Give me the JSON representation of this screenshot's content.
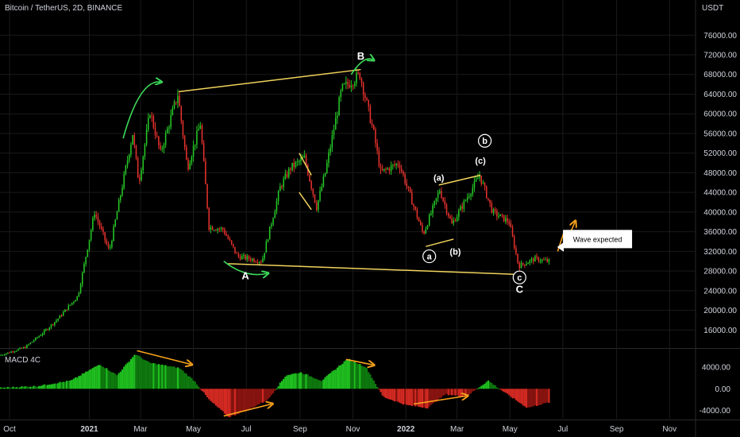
{
  "header": {
    "symbol_title": "Bitcoin / TetherUS, 2D, BINANCE",
    "currency": "USDT"
  },
  "colors": {
    "background": "#000000",
    "up": "#26c926",
    "down": "#e5322d",
    "grid": "#1a1a1a",
    "text": "#d1d4dc",
    "trendline": "#f2d45c",
    "green_arrow": "#3ddb5a",
    "orange_arrow": "#f7a21c",
    "wave_label": "#ffffff"
  },
  "macd_title": "MACD 4C",
  "callout": {
    "text": "Wave expected"
  },
  "chart_data": {
    "type": "candlestick",
    "title": "Bitcoin / TetherUS, 2D, BINANCE",
    "y_axis": {
      "unit": "USDT",
      "ticks": [
        "76000.00",
        "72000.00",
        "68000.00",
        "64000.00",
        "60000.00",
        "56000.00",
        "52000.00",
        "48000.00",
        "44000.00",
        "40000.00",
        "36000.00",
        "32000.00",
        "28000.00",
        "24000.00",
        "20000.00",
        "16000.00"
      ],
      "tick_values": [
        76000,
        72000,
        68000,
        64000,
        60000,
        56000,
        52000,
        48000,
        44000,
        40000,
        36000,
        32000,
        28000,
        24000,
        20000,
        16000
      ],
      "range": [
        12500,
        79600
      ]
    },
    "x_axis": {
      "ticks": [
        "Oct",
        "2021",
        "Mar",
        "May",
        "Jul",
        "Sep",
        "Nov",
        "2022",
        "Mar",
        "May",
        "Jul",
        "Sep",
        "Nov"
      ],
      "range": [
        "2020-09-20",
        "2022-12-01"
      ]
    },
    "price_anchors": [
      {
        "date": "2020-09-20",
        "price": 10800
      },
      {
        "date": "2020-10-20",
        "price": 12500
      },
      {
        "date": "2020-11-10",
        "price": 15500
      },
      {
        "date": "2020-11-28",
        "price": 18500
      },
      {
        "date": "2020-12-20",
        "price": 23000
      },
      {
        "date": "2021-01-08",
        "price": 40000
      },
      {
        "date": "2021-01-25",
        "price": 32000
      },
      {
        "date": "2021-02-21",
        "price": 56000
      },
      {
        "date": "2021-02-28",
        "price": 46000
      },
      {
        "date": "2021-03-13",
        "price": 60500
      },
      {
        "date": "2021-03-25",
        "price": 52000
      },
      {
        "date": "2021-04-14",
        "price": 64000
      },
      {
        "date": "2021-04-25",
        "price": 49000
      },
      {
        "date": "2021-05-10",
        "price": 58000
      },
      {
        "date": "2021-05-20",
        "price": 37000
      },
      {
        "date": "2021-06-05",
        "price": 36500
      },
      {
        "date": "2021-06-22",
        "price": 31000
      },
      {
        "date": "2021-07-20",
        "price": 30000
      },
      {
        "date": "2021-08-10",
        "price": 45000
      },
      {
        "date": "2021-08-22",
        "price": 49000
      },
      {
        "date": "2021-09-07",
        "price": 51000
      },
      {
        "date": "2021-09-21",
        "price": 41000
      },
      {
        "date": "2021-10-01",
        "price": 48000
      },
      {
        "date": "2021-10-20",
        "price": 65000
      },
      {
        "date": "2021-11-10",
        "price": 68000
      },
      {
        "date": "2021-11-26",
        "price": 56000
      },
      {
        "date": "2021-12-04",
        "price": 48000
      },
      {
        "date": "2021-12-25",
        "price": 50000
      },
      {
        "date": "2022-01-22",
        "price": 35500
      },
      {
        "date": "2022-02-10",
        "price": 44500
      },
      {
        "date": "2022-02-24",
        "price": 37500
      },
      {
        "date": "2022-03-28",
        "price": 47500
      },
      {
        "date": "2022-04-12",
        "price": 40000
      },
      {
        "date": "2022-05-01",
        "price": 38000
      },
      {
        "date": "2022-05-12",
        "price": 29000
      },
      {
        "date": "2022-05-31",
        "price": 30500
      },
      {
        "date": "2022-06-14",
        "price": 30000
      }
    ],
    "macd": {
      "name": "MACD 4C",
      "ticks": [
        "4000.00",
        "0.00",
        "-4000.00"
      ],
      "tick_values": [
        4000,
        0,
        -4000
      ],
      "range": [
        -5500,
        7200
      ],
      "anchors": [
        {
          "date": "2020-09-20",
          "value": 200
        },
        {
          "date": "2020-11-01",
          "value": 500
        },
        {
          "date": "2020-12-10",
          "value": 1500
        },
        {
          "date": "2021-01-12",
          "value": 4500
        },
        {
          "date": "2021-02-01",
          "value": 2500
        },
        {
          "date": "2021-02-22",
          "value": 6400
        },
        {
          "date": "2021-03-10",
          "value": 4800
        },
        {
          "date": "2021-04-14",
          "value": 3800
        },
        {
          "date": "2021-05-01",
          "value": 1500
        },
        {
          "date": "2021-05-18",
          "value": -2000
        },
        {
          "date": "2021-06-10",
          "value": -5200
        },
        {
          "date": "2021-06-30",
          "value": -4000
        },
        {
          "date": "2021-07-25",
          "value": -2000
        },
        {
          "date": "2021-08-15",
          "value": 2500
        },
        {
          "date": "2021-09-01",
          "value": 3000
        },
        {
          "date": "2021-09-25",
          "value": 1500
        },
        {
          "date": "2021-10-25",
          "value": 5500
        },
        {
          "date": "2021-11-15",
          "value": 4000
        },
        {
          "date": "2021-12-05",
          "value": -1500
        },
        {
          "date": "2022-01-01",
          "value": -3000
        },
        {
          "date": "2022-01-25",
          "value": -3500
        },
        {
          "date": "2022-02-15",
          "value": -1000
        },
        {
          "date": "2022-03-10",
          "value": -1500
        },
        {
          "date": "2022-04-05",
          "value": 1500
        },
        {
          "date": "2022-04-25",
          "value": -800
        },
        {
          "date": "2022-05-20",
          "value": -3500
        },
        {
          "date": "2022-06-14",
          "value": -2500
        }
      ]
    },
    "annotations": {
      "wave_labels": [
        {
          "text": "A",
          "date": "2021-06-30",
          "price": 27000,
          "circled": false,
          "bold": true
        },
        {
          "text": "B",
          "date": "2021-11-10",
          "price": 71700,
          "circled": false,
          "bold": true
        },
        {
          "text": "C",
          "date": "2022-05-12",
          "price": 24200,
          "circled": false,
          "bold": true
        },
        {
          "text": "a",
          "date": "2022-01-28",
          "price": 31000,
          "circled": true,
          "bold": false
        },
        {
          "text": "(a)",
          "date": "2022-02-08",
          "price": 47000,
          "circled": false,
          "bold": false
        },
        {
          "text": "(b)",
          "date": "2022-02-27",
          "price": 32000,
          "circled": false,
          "bold": false
        },
        {
          "text": "(c)",
          "date": "2022-03-28",
          "price": 50500,
          "circled": false,
          "bold": false
        },
        {
          "text": "b",
          "date": "2022-04-02",
          "price": 54500,
          "circled": true,
          "bold": false
        },
        {
          "text": "c",
          "date": "2022-05-12",
          "price": 26700,
          "circled": true,
          "bold": false
        }
      ],
      "trendlines": [
        {
          "from": {
            "date": "2021-04-14",
            "price": 64500
          },
          "to": {
            "date": "2021-11-10",
            "price": 69000
          }
        },
        {
          "from": {
            "date": "2021-06-10",
            "price": 29500
          },
          "to": {
            "date": "2022-05-12",
            "price": 27300
          }
        },
        {
          "from": {
            "date": "2022-02-08",
            "price": 45500
          },
          "to": {
            "date": "2022-03-28",
            "price": 47500
          }
        },
        {
          "from": {
            "date": "2022-01-24",
            "price": 33000
          },
          "to": {
            "date": "2022-02-25",
            "price": 34500
          }
        },
        {
          "from": {
            "date": "2021-08-31",
            "price": 52000
          },
          "to": {
            "date": "2021-09-14",
            "price": 47500
          }
        },
        {
          "from": {
            "date": "2021-08-31",
            "price": 44000
          },
          "to": {
            "date": "2021-09-14",
            "price": 40500
          }
        }
      ],
      "green_arrows": [
        {
          "points": [
            [
              "2021-02-09",
              55000
            ],
            [
              "2021-02-28",
              67000
            ],
            [
              "2021-03-24",
              66500
            ]
          ]
        },
        {
          "points": [
            [
              "2021-06-05",
              30000
            ],
            [
              "2021-06-30",
              26500
            ],
            [
              "2021-07-25",
              27500
            ]
          ]
        },
        {
          "points": [
            [
              "2021-10-30",
              68000
            ],
            [
              "2021-11-14",
              72000
            ],
            [
              "2021-11-24",
              71000
            ]
          ]
        }
      ],
      "orange_arrows": [
        {
          "pane": "macd",
          "from": [
            "2021-02-25",
            7000
          ],
          "to": [
            "2021-04-28",
            4500
          ]
        },
        {
          "pane": "macd",
          "from": [
            "2021-06-05",
            -5000
          ],
          "to": [
            "2021-07-30",
            -2800
          ]
        },
        {
          "pane": "macd",
          "from": [
            "2021-10-24",
            5400
          ],
          "to": [
            "2021-11-24",
            4400
          ]
        },
        {
          "pane": "macd",
          "from": [
            "2022-01-10",
            -2800
          ],
          "to": [
            "2022-03-12",
            -1300
          ]
        },
        {
          "pane": "price",
          "from": [
            "2022-06-25",
            32000
          ],
          "to": [
            "2022-07-15",
            38000
          ]
        }
      ],
      "callout": {
        "text": "Wave expected",
        "date": "2022-08-10",
        "price": 34500
      }
    }
  }
}
